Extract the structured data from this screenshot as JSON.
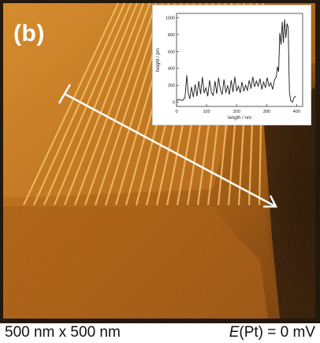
{
  "figure": {
    "panel_label": "(b)",
    "scan_size_caption": "500 nm x 500 nm",
    "potential_caption": {
      "symbol": "E",
      "rest": "(Pt) = 0 mV"
    }
  },
  "inset_plot": {
    "xlabel": "length / nm",
    "ylabel": "height / pm",
    "x_ticks": [
      "0",
      "100",
      "200",
      "300",
      "400"
    ],
    "y_ticks": [
      "0",
      "200",
      "400",
      "600",
      "800",
      "1000"
    ],
    "xlim": [
      0,
      420
    ],
    "ylim": [
      -50,
      1050
    ],
    "profile": [
      [
        0,
        25
      ],
      [
        10,
        30
      ],
      [
        20,
        20
      ],
      [
        28,
        55
      ],
      [
        34,
        320
      ],
      [
        38,
        120
      ],
      [
        44,
        40
      ],
      [
        50,
        180
      ],
      [
        56,
        60
      ],
      [
        62,
        210
      ],
      [
        68,
        70
      ],
      [
        74,
        250
      ],
      [
        80,
        95
      ],
      [
        86,
        300
      ],
      [
        92,
        110
      ],
      [
        98,
        170
      ],
      [
        104,
        70
      ],
      [
        110,
        260
      ],
      [
        116,
        120
      ],
      [
        122,
        80
      ],
      [
        128,
        250
      ],
      [
        134,
        100
      ],
      [
        140,
        290
      ],
      [
        146,
        150
      ],
      [
        152,
        90
      ],
      [
        158,
        270
      ],
      [
        164,
        110
      ],
      [
        170,
        200
      ],
      [
        176,
        90
      ],
      [
        182,
        260
      ],
      [
        188,
        120
      ],
      [
        194,
        300
      ],
      [
        200,
        130
      ],
      [
        206,
        190
      ],
      [
        212,
        110
      ],
      [
        218,
        240
      ],
      [
        224,
        130
      ],
      [
        230,
        200
      ],
      [
        236,
        140
      ],
      [
        242,
        260
      ],
      [
        248,
        160
      ],
      [
        254,
        300
      ],
      [
        260,
        180
      ],
      [
        266,
        250
      ],
      [
        272,
        190
      ],
      [
        278,
        280
      ],
      [
        284,
        150
      ],
      [
        290,
        240
      ],
      [
        296,
        170
      ],
      [
        302,
        290
      ],
      [
        308,
        190
      ],
      [
        314,
        230
      ],
      [
        320,
        150
      ],
      [
        326,
        260
      ],
      [
        332,
        300
      ],
      [
        336,
        420
      ],
      [
        340,
        360
      ],
      [
        344,
        820
      ],
      [
        348,
        680
      ],
      [
        352,
        950
      ],
      [
        356,
        700
      ],
      [
        360,
        980
      ],
      [
        364,
        760
      ],
      [
        368,
        930
      ],
      [
        372,
        880
      ],
      [
        376,
        120
      ],
      [
        380,
        20
      ],
      [
        386,
        0
      ],
      [
        392,
        60
      ],
      [
        398,
        70
      ]
    ],
    "colors": {
      "line": "#1a1a1a",
      "axes": "#333333"
    }
  },
  "overlay": {
    "arrow_color": "#ffffff"
  }
}
